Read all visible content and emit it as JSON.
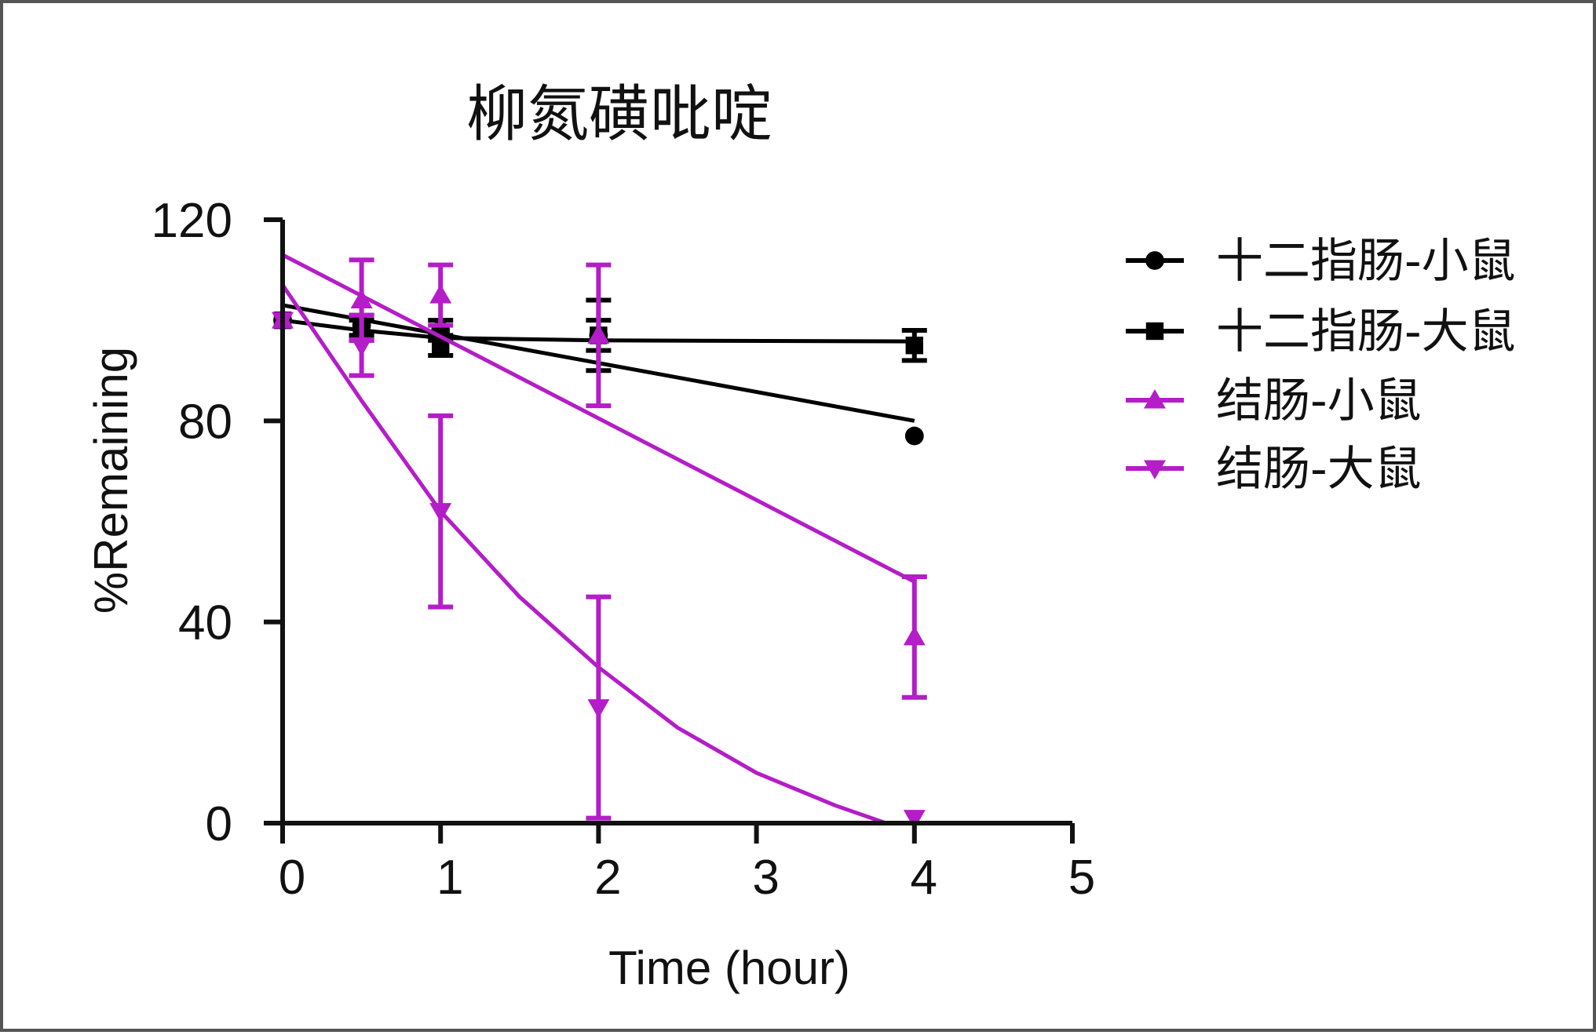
{
  "chart_data": {
    "type": "scatter",
    "title": "柳氮磺吡啶",
    "xlabel": "Time (hour)",
    "ylabel": "%Remaining",
    "xlim": [
      0,
      5
    ],
    "ylim": [
      0,
      120
    ],
    "x_ticks": [
      "0",
      "1",
      "2",
      "3",
      "4",
      "5"
    ],
    "y_ticks": [
      "0",
      "40",
      "80",
      "120"
    ],
    "legend_position": "right",
    "grid": false,
    "series": [
      {
        "name": "十二指肠-小鼠",
        "color": "#000000",
        "marker": "circle",
        "x": [
          0,
          0.5,
          1,
          2,
          4
        ],
        "y": [
          100,
          99,
          98,
          97,
          77
        ],
        "err": [
          0,
          2,
          2,
          7,
          0
        ],
        "fit": {
          "kind": "linear",
          "x": [
            0,
            4
          ],
          "y": [
            103,
            80
          ]
        }
      },
      {
        "name": "十二指肠-大鼠",
        "color": "#000000",
        "marker": "square",
        "x": [
          0,
          0.5,
          1,
          2,
          4
        ],
        "y": [
          100,
          98,
          95,
          97,
          95
        ],
        "err": [
          0,
          2,
          2,
          3,
          3
        ],
        "fit": {
          "kind": "plateau",
          "x": [
            0,
            0.5,
            1,
            2,
            4
          ],
          "y": [
            100,
            98,
            96.5,
            96,
            95.8
          ]
        }
      },
      {
        "name": "结肠-小鼠",
        "color": "#B41DC8",
        "marker": "triangle-up",
        "x": [
          0,
          0.5,
          1,
          2,
          4
        ],
        "y": [
          100,
          104,
          105,
          97,
          37
        ],
        "err": [
          0,
          8,
          6,
          14,
          12
        ],
        "fit": {
          "kind": "linear",
          "x": [
            0,
            4
          ],
          "y": [
            113,
            48
          ]
        }
      },
      {
        "name": "结肠-大鼠",
        "color": "#B41DC8",
        "marker": "triangle-down",
        "x": [
          0,
          0.5,
          1,
          2,
          4
        ],
        "y": [
          100,
          95,
          62,
          23,
          1
        ],
        "err": [
          0,
          6,
          19,
          22,
          0
        ],
        "fit": {
          "kind": "curve",
          "x": [
            0,
            0.5,
            1,
            1.5,
            2,
            2.5,
            3,
            3.5,
            3.82
          ],
          "y": [
            107,
            84,
            62,
            45,
            31,
            19,
            10,
            3.5,
            0
          ]
        }
      }
    ]
  }
}
